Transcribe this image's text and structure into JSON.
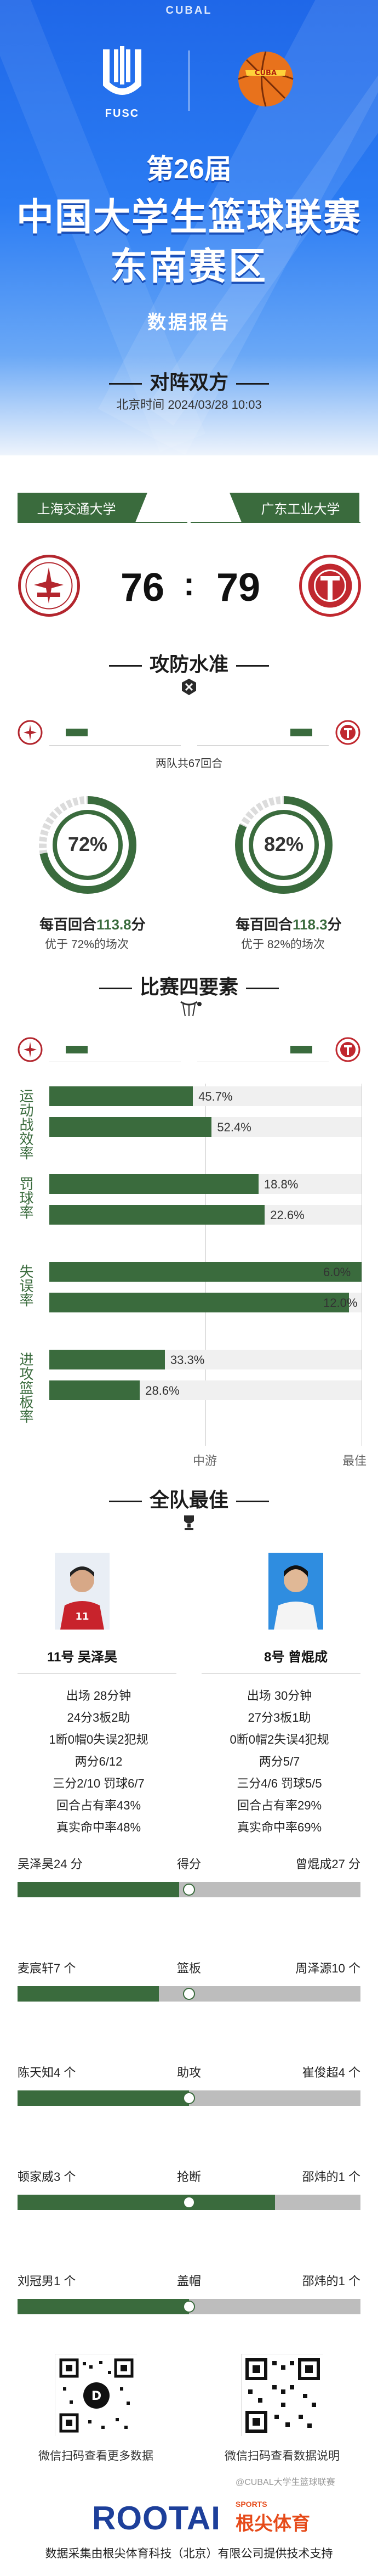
{
  "header": {
    "top_mark": "CUBAL",
    "fusc_label": "FUSC",
    "session": "第26届",
    "title_line1": "中国大学生篮球联赛",
    "title_line2": "东南赛区",
    "subtitle": "数据报告"
  },
  "matchup": {
    "section_title": "对阵双方",
    "time_text": "北京时间  2024/03/28 10:03",
    "home_team": "上海交通大学",
    "away_team": "广东工业大学",
    "home_score": "76",
    "colon": ":",
    "away_score": "79",
    "home_color": "#b3262e",
    "away_color": "#c0282f"
  },
  "offense": {
    "section_title": "攻防水准",
    "both_teams_text": "两队共67回合",
    "home_pct": "72%",
    "away_pct": "82%",
    "home_pct_value": 72,
    "away_pct_value": 82,
    "home_per100_prefix": "每百回合",
    "home_per100_value": "113.8",
    "home_per100_suffix": "分",
    "away_per100_prefix": "每百回合",
    "away_per100_value": "118.3",
    "away_per100_suffix": "分",
    "home_better": "优于 72%的场次",
    "away_better": "优于 82%的场次"
  },
  "four_factors": {
    "section_title": "比赛四要素",
    "axis_mid": "中游",
    "axis_right": "最佳",
    "factors": [
      {
        "label": "运动战效率",
        "home": "45.7%",
        "away": "52.4%",
        "home_fill": 0.46,
        "away_fill": 0.52
      },
      {
        "label": "罚球率",
        "home": "18.8%",
        "away": "22.6%",
        "home_fill": 0.67,
        "away_fill": 0.69
      },
      {
        "label": "失误率",
        "home": "6.0%",
        "away": "12.0%",
        "home_fill": 1.0,
        "away_fill": 0.96
      },
      {
        "label": "进攻篮板率",
        "home": "33.3%",
        "away": "28.6%",
        "home_fill": 0.37,
        "away_fill": 0.29
      }
    ]
  },
  "best_players": {
    "section_title": "全队最佳",
    "home": {
      "name": "11号 吴泽昊",
      "stats": [
        "出场 28分钟",
        "24分3板2助",
        "1断0帽0失误2犯规",
        "两分6/12",
        "三分2/10 罚球6/7",
        "回合占有率43%",
        "真实命中率48%"
      ]
    },
    "away": {
      "name": "8号 曾焜成",
      "stats": [
        "出场 30分钟",
        "27分3板1助",
        "0断0帽2失误4犯规",
        "两分5/7",
        "三分4/6 罚球5/5",
        "回合占有率29%",
        "真实命中率69%"
      ]
    }
  },
  "comparisons": [
    {
      "left": "吴泽昊24 分",
      "mid": "得分",
      "right": "曾焜成27 分",
      "left_value": 24,
      "right_value": 27
    },
    {
      "left": "麦宸轩7 个",
      "mid": "篮板",
      "right": "周泽源10 个",
      "left_value": 7,
      "right_value": 10
    },
    {
      "left": "陈天知4 个",
      "mid": "助攻",
      "right": "崔俊超4 个",
      "left_value": 4,
      "right_value": 4
    },
    {
      "left": "顿家威3 个",
      "mid": "抢断",
      "right": "邵炜的1 个",
      "left_value": 3,
      "right_value": 1
    },
    {
      "left": "刘冠男1 个",
      "mid": "盖帽",
      "right": "邵炜的1 个",
      "left_value": 1,
      "right_value": 1
    }
  ],
  "footer": {
    "qr_left_text": "微信扫码查看更多数据",
    "qr_right_text": "微信扫码查看数据说明",
    "brand": "ROOTAI",
    "brand_sports": "SPORTS",
    "brand_cn": "根尖体育",
    "credit": "数据采集由根尖体育科技（北京）有限公司提供技术支持",
    "watermark": "@CUBAL大学生篮球联赛"
  }
}
